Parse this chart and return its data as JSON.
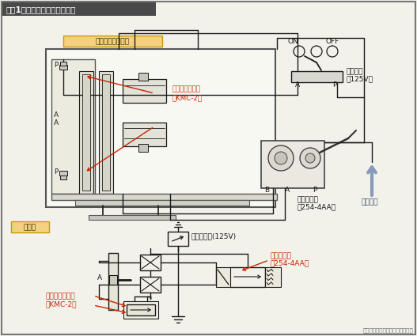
{
  "title": "【图1】气压驱动系统和气路图",
  "title_bg": "#4a4a4a",
  "title_fg": "#ffffff",
  "bg_color": "#f2f2ea",
  "border_color": "#777777",
  "section1_label": "气缸连续往复动作",
  "section1_label_bg": "#f5d080",
  "section1_label_border": "#cc9900",
  "section2_label": "气路图",
  "section2_label_bg": "#f5d080",
  "section2_label_border": "#cc9900",
  "label_kmc_upper": "微型流量调节阀",
  "label_kmc_lower": "（KMC-2）",
  "label_254_upper": "空气动作阀",
  "label_254_lower": "（254-4AA）",
  "label_valve_upper": "启动阀门",
  "label_valve_lower": "（125V）",
  "label_on": "ON",
  "label_off": "OFF",
  "label_manual": "手动启动阀(125V)",
  "label_254b_upper": "空气动作阀",
  "label_254b_lower": "（254-4AA）",
  "label_kmcb_upper": "微型流量调节阀",
  "label_kmcb_lower": "（KMC-2）",
  "label_compressed": "压缩空气",
  "label_source": "摘自小金井驱动设备综合商品目录",
  "label_A": "A",
  "label_B": "B",
  "label_P": "P",
  "line_color": "#1a1a1a",
  "red_color": "#cc2200",
  "blue_color": "#8899bb"
}
